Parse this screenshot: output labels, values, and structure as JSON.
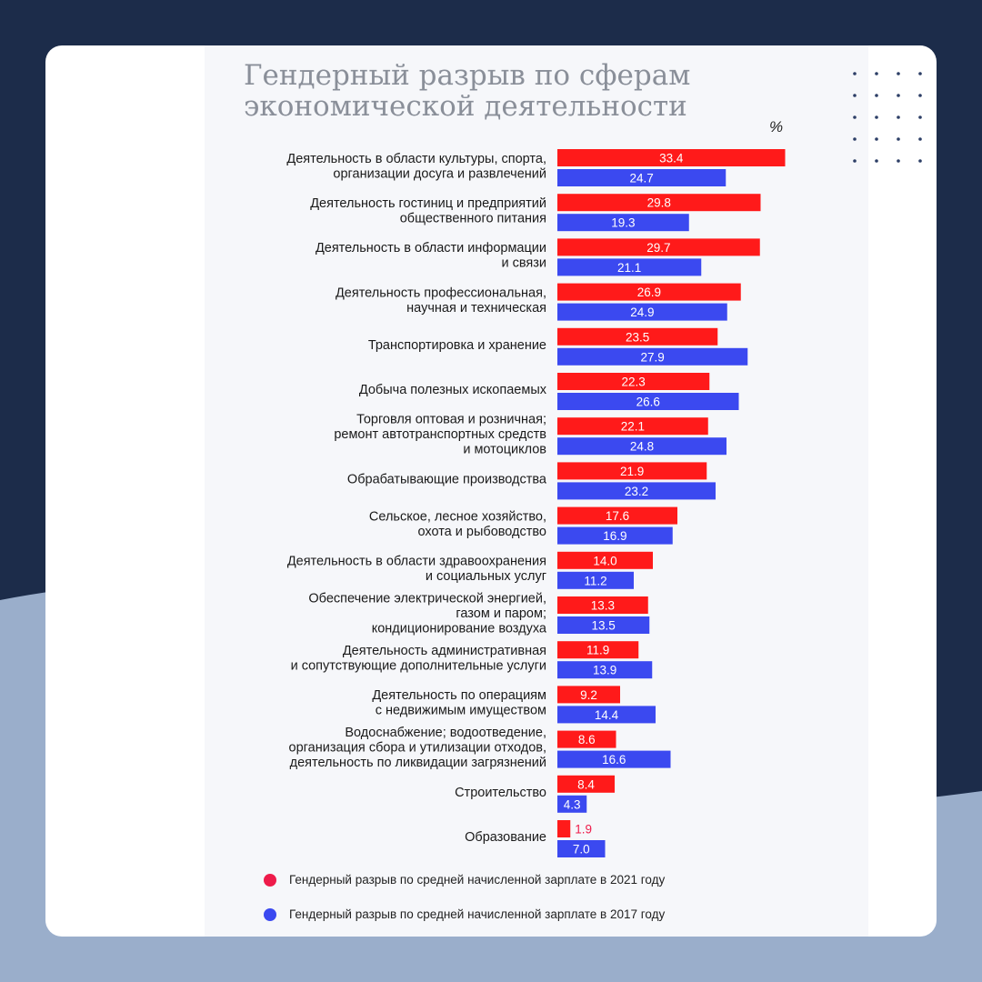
{
  "chart_data": {
    "type": "bar",
    "orientation": "horizontal",
    "title": "Гендерный разрыв по сферам экономической деятельности",
    "title_lines": [
      "Гендерный разрыв по сферам",
      "экономической деятельности"
    ],
    "unit": "%",
    "categories": [
      [
        "Деятельность в области культуры, спорта,",
        "организации досуга и развлечений"
      ],
      [
        "Деятельность гостиниц и предприятий",
        "общественного питания"
      ],
      [
        "Деятельность в области информации",
        "и связи"
      ],
      [
        "Деятельность профессиональная,",
        "научная и техническая"
      ],
      [
        "Транспортировка и хранение"
      ],
      [
        "Добыча полезных ископаемых"
      ],
      [
        "Торговля оптовая и розничная;",
        "ремонт автотранспортных средств",
        "и мотоциклов"
      ],
      [
        "Обрабатывающие производства"
      ],
      [
        "Сельское, лесное хозяйство,",
        "охота и рыбоводство"
      ],
      [
        "Деятельность в области здравоохранения",
        "и социальных услуг"
      ],
      [
        "Обеспечение электрической энергией,",
        "газом и паром;",
        "кондиционирование воздуха"
      ],
      [
        "Деятельность административная",
        "и сопутствующие дополнительные услуги"
      ],
      [
        "Деятельность по операциям",
        "с недвижимым имуществом"
      ],
      [
        "Водоснабжение; водоотведение,",
        "организация сбора и утилизации отходов,",
        "деятельность по ликвидации загрязнений"
      ],
      [
        "Строительство"
      ],
      [
        "Образование"
      ]
    ],
    "series": [
      {
        "name": "Гендерный разрыв по средней начисленной зарплате в 2021 году",
        "color": "#ff1a1a",
        "values": [
          33.4,
          29.8,
          29.7,
          26.9,
          23.5,
          22.3,
          22.1,
          21.9,
          17.6,
          14.0,
          13.3,
          11.9,
          9.2,
          8.6,
          8.4,
          1.9
        ],
        "labels": [
          "33.4",
          "29.8",
          "29.7",
          "26.9",
          "23.5",
          "22.3",
          "22.1",
          "21.9",
          "17.6",
          "14.0",
          "13.3",
          "11.9",
          "9.2",
          "8.6",
          "8.4",
          "1.9"
        ]
      },
      {
        "name": "Гендерный разрыв по средней начисленной зарплате в 2017 году",
        "color": "#3b49f0",
        "values": [
          24.7,
          19.3,
          21.1,
          24.9,
          27.9,
          26.6,
          24.8,
          23.2,
          16.9,
          11.2,
          13.5,
          13.9,
          14.4,
          16.6,
          4.3,
          7.0
        ],
        "labels": [
          "24.7",
          "19.3",
          "21.1",
          "24.9",
          "27.9",
          "26.6",
          "24.8",
          "23.2",
          "16.9",
          "11.2",
          "13.5",
          "13.9",
          "14.4",
          "16.6",
          "4.3",
          "7.0"
        ]
      }
    ],
    "xlim": [
      0,
      34
    ],
    "grid": false,
    "legend_position": "bottom"
  },
  "legend": {
    "item_2021": "Гендерный разрыв по средней начисленной зарплате в 2021 году",
    "item_2017": "Гендерный разрыв по средней начисленной зарплате в 2017 году",
    "color_2021": "#ee1b4a",
    "color_2017": "#3b49f0"
  },
  "colors": {
    "page_bg": "#1c2c4a",
    "wave": "#9aaecb",
    "label_on_small_bar": "#ee1b4a"
  }
}
